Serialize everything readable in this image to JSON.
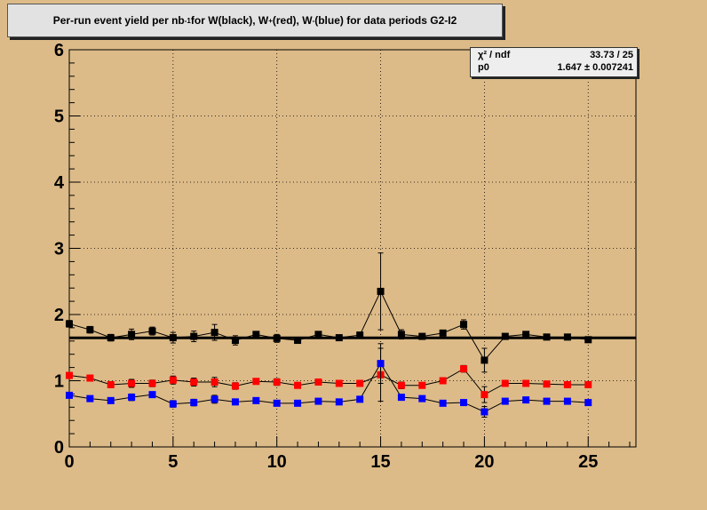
{
  "title": {
    "prefix": "Per-run event yield per nb",
    "prefix_sup": "-1",
    "mid1": " for W(black), W",
    "mid1_sup": "+",
    "mid2": "(red), W",
    "mid2_sup": "-",
    "suffix": "(blue) for data periods G2-I2"
  },
  "stats": {
    "row1_label": "χ² / ndf",
    "row1_value": "33.73 / 25",
    "row2_label": "p0",
    "row2_value": "1.647 ± 0.007241"
  },
  "colors": {
    "background": "#ddbb88",
    "w_all": "#000000",
    "w_plus": "#ff0000",
    "w_minus": "#0000ff"
  },
  "chart_data": {
    "type": "scatter",
    "xlim": [
      0,
      27.3
    ],
    "ylim": [
      0,
      6
    ],
    "x_ticks": [
      0,
      5,
      10,
      15,
      20,
      25
    ],
    "y_ticks": [
      0,
      1,
      2,
      3,
      4,
      5,
      6
    ],
    "grid": true,
    "fit_line": {
      "value": 1.647
    },
    "x": [
      0,
      1,
      2,
      3,
      4,
      5,
      6,
      7,
      8,
      9,
      10,
      11,
      12,
      13,
      14,
      15,
      16,
      17,
      18,
      19,
      20,
      21,
      22,
      23,
      24,
      25
    ],
    "series": [
      {
        "color": "#000000",
        "values": [
          1.86,
          1.77,
          1.65,
          1.7,
          1.75,
          1.65,
          1.67,
          1.73,
          1.61,
          1.7,
          1.64,
          1.61,
          1.7,
          1.65,
          1.69,
          2.35,
          1.7,
          1.67,
          1.72,
          1.85,
          1.31,
          1.67,
          1.7,
          1.66,
          1.66,
          1.62
        ],
        "errors": [
          0.05,
          0.05,
          0.05,
          0.08,
          0.06,
          0.08,
          0.08,
          0.12,
          0.07,
          0.04,
          0.06,
          0.04,
          0.03,
          0.03,
          0.03,
          0.58,
          0.07,
          0.04,
          0.03,
          0.07,
          0.18,
          0.03,
          0.03,
          0.03,
          0.03,
          0.03
        ]
      },
      {
        "color": "#ff0000",
        "values": [
          1.08,
          1.04,
          0.94,
          0.96,
          0.96,
          1.01,
          0.98,
          0.98,
          0.92,
          0.99,
          0.98,
          0.93,
          0.98,
          0.96,
          0.96,
          1.09,
          0.93,
          0.93,
          1.0,
          1.18,
          0.79,
          0.96,
          0.96,
          0.95,
          0.94,
          0.94
        ],
        "errors": [
          0.04,
          0.03,
          0.04,
          0.06,
          0.05,
          0.06,
          0.06,
          0.07,
          0.05,
          0.03,
          0.05,
          0.03,
          0.02,
          0.02,
          0.02,
          0.4,
          0.05,
          0.03,
          0.02,
          0.05,
          0.12,
          0.02,
          0.02,
          0.02,
          0.02,
          0.02
        ]
      },
      {
        "color": "#0000ff",
        "values": [
          0.78,
          0.73,
          0.7,
          0.75,
          0.79,
          0.65,
          0.67,
          0.72,
          0.68,
          0.7,
          0.66,
          0.66,
          0.69,
          0.68,
          0.72,
          1.26,
          0.75,
          0.73,
          0.66,
          0.67,
          0.53,
          0.69,
          0.71,
          0.69,
          0.69,
          0.67
        ],
        "errors": [
          0.03,
          0.03,
          0.03,
          0.05,
          0.04,
          0.05,
          0.05,
          0.06,
          0.04,
          0.03,
          0.04,
          0.02,
          0.02,
          0.02,
          0.02,
          0.3,
          0.04,
          0.02,
          0.02,
          0.04,
          0.08,
          0.02,
          0.02,
          0.02,
          0.02,
          0.02
        ]
      }
    ]
  }
}
